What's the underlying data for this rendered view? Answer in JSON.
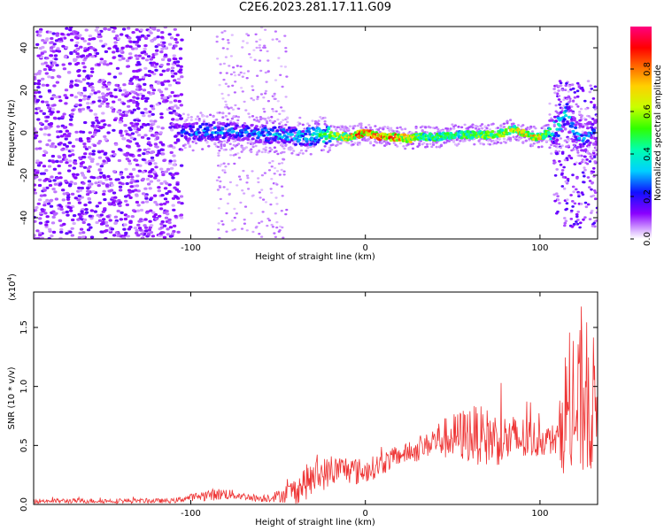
{
  "chart_data": [
    {
      "type": "heatmap",
      "title": "C2E6.2023.281.17.11.G09",
      "xlabel": "Height of straight line (km)",
      "ylabel": "Frequency (Hz)",
      "xlim": [
        -190,
        133
      ],
      "ylim": [
        -50,
        50
      ],
      "xticks": [
        -100,
        0,
        100
      ],
      "yticks": [
        -40,
        -20,
        0,
        20,
        40
      ],
      "colorbar": {
        "label": "Normalized spectral amplitude",
        "range": [
          0.0,
          1.0
        ],
        "ticks": [
          "0.0",
          "0.2",
          "0.4",
          "0.6",
          "0.8"
        ],
        "colormap": "rainbow"
      },
      "ridge": {
        "x": [
          -105,
          -90,
          -70,
          -50,
          -35,
          -20,
          -10,
          0,
          10,
          20,
          25,
          30,
          40,
          50,
          60,
          70,
          80,
          85,
          90,
          95,
          100,
          105,
          110,
          115,
          120,
          125,
          130
        ],
        "frequency": [
          0,
          1,
          0,
          -1,
          -2,
          -1,
          -2,
          0,
          -2,
          -2,
          -3,
          -2,
          -2,
          -1,
          -1,
          -1,
          0,
          2,
          0,
          -2,
          -2,
          0,
          2,
          10,
          0,
          -3,
          0
        ],
        "amplitude": [
          0.3,
          0.35,
          0.3,
          0.35,
          0.4,
          0.55,
          0.75,
          0.85,
          0.85,
          0.8,
          0.75,
          0.6,
          0.55,
          0.5,
          0.55,
          0.6,
          0.65,
          0.7,
          0.8,
          0.75,
          0.7,
          0.5,
          0.45,
          0.4,
          0.35,
          0.3,
          0.3
        ]
      },
      "noise_region_x": [
        -190,
        -105
      ],
      "grid": false
    },
    {
      "type": "line",
      "title": "",
      "xlabel": "Height of straight line (km)",
      "ylabel": "SNR (10 * v/v)",
      "multiplier": "(x10",
      "multiplier_exp": "4",
      "multiplier_close": ")",
      "xlim": [
        -190,
        133
      ],
      "ylim": [
        0,
        1.8
      ],
      "xticks": [
        -100,
        0,
        100
      ],
      "yticks": [
        "0.0",
        "0.5",
        "1.0",
        "1.5"
      ],
      "series": [
        {
          "color": "#ee3333",
          "x": [
            -190,
            -150,
            -110,
            -100,
            -90,
            -80,
            -70,
            -60,
            -50,
            -40,
            -35,
            -30,
            -25,
            -20,
            -15,
            -10,
            -5,
            0,
            10,
            20,
            30,
            35,
            40,
            50,
            60,
            70,
            80,
            90,
            100,
            105,
            110,
            115,
            120,
            125,
            130,
            133
          ],
          "y": [
            0.03,
            0.03,
            0.03,
            0.06,
            0.08,
            0.09,
            0.07,
            0.05,
            0.07,
            0.12,
            0.18,
            0.22,
            0.26,
            0.27,
            0.3,
            0.3,
            0.28,
            0.28,
            0.35,
            0.42,
            0.46,
            0.5,
            0.55,
            0.57,
            0.6,
            0.57,
            0.55,
            0.55,
            0.55,
            0.55,
            0.55,
            0.8,
            0.75,
            0.9,
            0.85,
            0.8
          ],
          "spread": [
            0.02,
            0.02,
            0.02,
            0.03,
            0.05,
            0.05,
            0.03,
            0.03,
            0.05,
            0.12,
            0.15,
            0.15,
            0.15,
            0.12,
            0.12,
            0.12,
            0.12,
            0.1,
            0.1,
            0.08,
            0.1,
            0.1,
            0.15,
            0.2,
            0.25,
            0.25,
            0.22,
            0.2,
            0.15,
            0.12,
            0.15,
            0.6,
            0.6,
            0.7,
            0.6,
            0.5
          ]
        }
      ],
      "grid": false
    }
  ]
}
